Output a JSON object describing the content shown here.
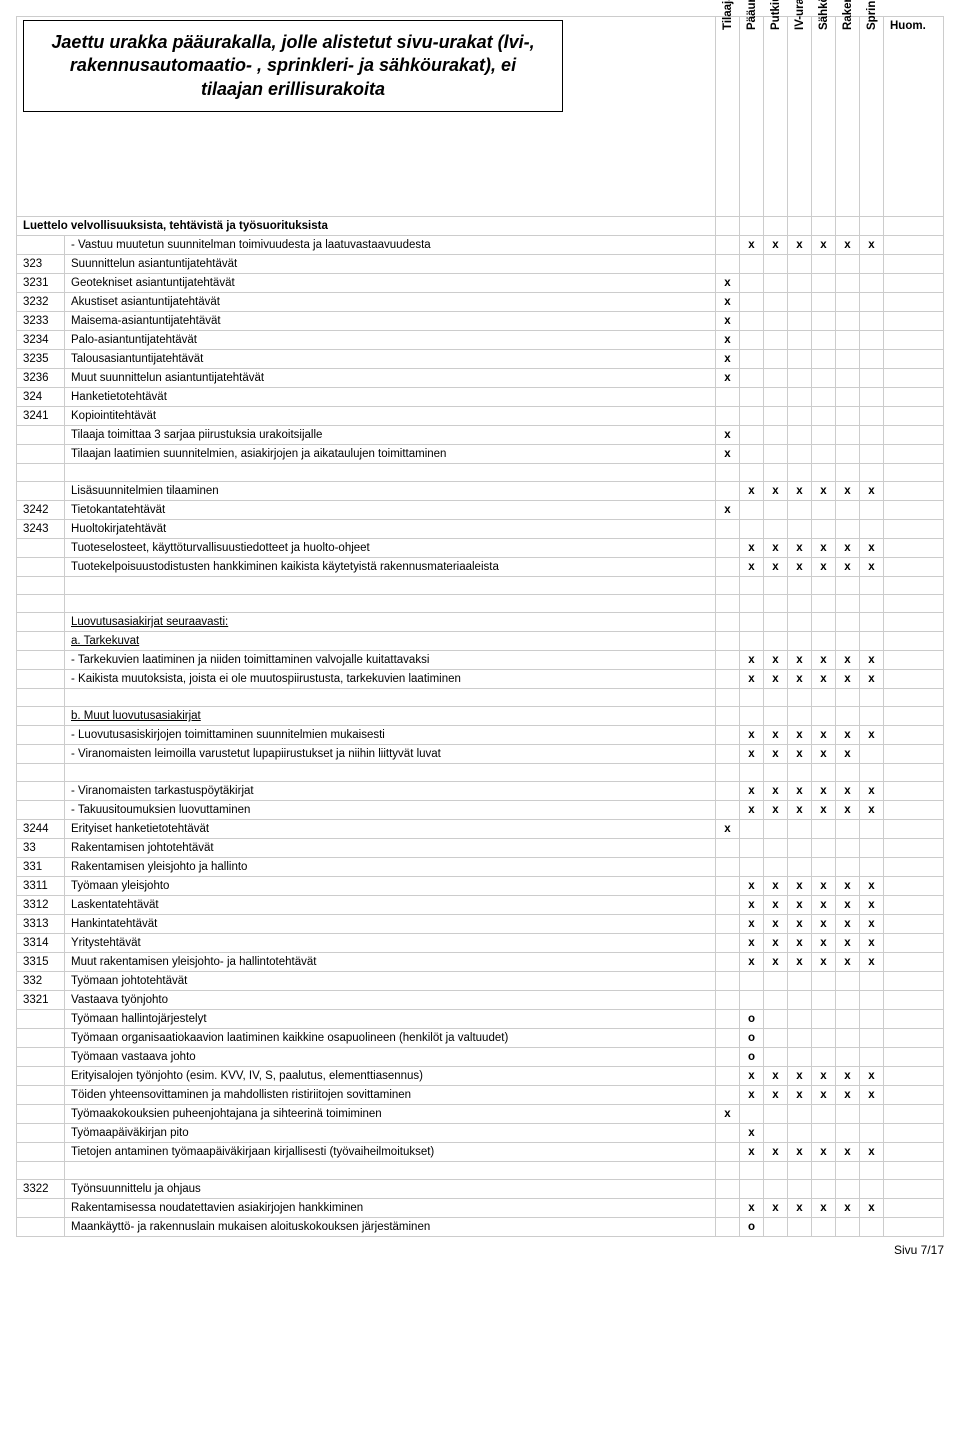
{
  "title": "Jaettu urakka pääurakalla, jolle alistetut sivu-urakat (lvi-, rakennusautomaatio- , sprinkleri- ja sähköurakat), ei tilaajan erillisurakoita",
  "list_header": "Luettelo velvollisuuksista, tehtävistä ja työsuorituksista",
  "columns": [
    "Tilaaja",
    "Pääurakoitsija",
    "Putkiurakoitsija",
    "IV-urakoitsija",
    "Sähköurakoitsija",
    "Rakennusautomaatiourakoitsija",
    "Sprinkleriurakoitsija"
  ],
  "note_header": "Huom.",
  "footer": "Sivu 7/17",
  "rows": [
    {
      "code": "",
      "desc": "- Vastuu muutetun suunnitelman toimivuudesta ja laatuvastaavuudesta",
      "indent": 2,
      "marks": [
        "",
        "x",
        "x",
        "x",
        "x",
        "x",
        "x"
      ]
    },
    {
      "code": "323",
      "desc": "Suunnittelun asiantuntijatehtävät",
      "indent": 1,
      "marks": [
        "",
        "",
        "",
        "",
        "",
        "",
        ""
      ]
    },
    {
      "code": "3231",
      "desc": "Geotekniset asiantuntijatehtävät",
      "indent": 1,
      "marks": [
        "x",
        "",
        "",
        "",
        "",
        "",
        ""
      ]
    },
    {
      "code": "3232",
      "desc": "Akustiset asiantuntijatehtävät",
      "indent": 1,
      "marks": [
        "x",
        "",
        "",
        "",
        "",
        "",
        ""
      ]
    },
    {
      "code": "3233",
      "desc": "Maisema-asiantuntijatehtävät",
      "indent": 1,
      "marks": [
        "x",
        "",
        "",
        "",
        "",
        "",
        ""
      ]
    },
    {
      "code": "3234",
      "desc": "Palo-asiantuntijatehtävät",
      "indent": 1,
      "marks": [
        "x",
        "",
        "",
        "",
        "",
        "",
        ""
      ]
    },
    {
      "code": "3235",
      "desc": "Talousasiantuntijatehtävät",
      "indent": 1,
      "marks": [
        "x",
        "",
        "",
        "",
        "",
        "",
        ""
      ]
    },
    {
      "code": "3236",
      "desc": "Muut suunnittelun asiantuntijatehtävät",
      "indent": 1,
      "marks": [
        "x",
        "",
        "",
        "",
        "",
        "",
        ""
      ]
    },
    {
      "code": "324",
      "desc": "Hanketietotehtävät",
      "indent": 1,
      "marks": [
        "",
        "",
        "",
        "",
        "",
        "",
        ""
      ]
    },
    {
      "code": "3241",
      "desc": "Kopiointitehtävät",
      "indent": 1,
      "marks": [
        "",
        "",
        "",
        "",
        "",
        "",
        ""
      ]
    },
    {
      "code": "",
      "desc": "Tilaaja toimittaa 3 sarjaa piirustuksia urakoitsijalle",
      "indent": 2,
      "marks": [
        "x",
        "",
        "",
        "",
        "",
        "",
        ""
      ]
    },
    {
      "code": "",
      "desc": "Tilaajan laatimien suunnitelmien, asiakirjojen ja aikataulujen toimittaminen",
      "indent": 2,
      "marks": [
        "x",
        "",
        "",
        "",
        "",
        "",
        ""
      ]
    },
    {
      "blank": true
    },
    {
      "code": "",
      "desc": "Lisäsuunnitelmien tilaaminen",
      "indent": 2,
      "marks": [
        "",
        "x",
        "x",
        "x",
        "x",
        "x",
        "x"
      ]
    },
    {
      "code": "3242",
      "desc": "Tietokantatehtävät",
      "indent": 1,
      "marks": [
        "x",
        "",
        "",
        "",
        "",
        "",
        ""
      ]
    },
    {
      "code": "3243",
      "desc": "Huoltokirjatehtävät",
      "indent": 1,
      "marks": [
        "",
        "",
        "",
        "",
        "",
        "",
        ""
      ]
    },
    {
      "code": "",
      "desc": "Tuoteselosteet, käyttöturvallisuustiedotteet ja huolto-ohjeet",
      "indent": 2,
      "marks": [
        "",
        "x",
        "x",
        "x",
        "x",
        "x",
        "x"
      ]
    },
    {
      "code": "",
      "desc": "Tuotekelpoisuustodistusten hankkiminen kaikista käytetyistä rakennusmateriaaleista",
      "indent": 2,
      "marks": [
        "",
        "x",
        "x",
        "x",
        "x",
        "x",
        "x"
      ]
    },
    {
      "blank": true
    },
    {
      "blank": true
    },
    {
      "code": "",
      "desc": "Luovutusasiakirjat seuraavasti:",
      "indent": 2,
      "underline": true,
      "marks": [
        "",
        "",
        "",
        "",
        "",
        "",
        ""
      ]
    },
    {
      "code": "",
      "desc": "a. Tarkekuvat",
      "indent": 2,
      "underline": true,
      "marks": [
        "",
        "",
        "",
        "",
        "",
        "",
        ""
      ]
    },
    {
      "code": "",
      "desc": "- Tarkekuvien laatiminen ja niiden toimittaminen valvojalle kuitattavaksi",
      "indent": 2,
      "marks": [
        "",
        "x",
        "x",
        "x",
        "x",
        "x",
        "x"
      ]
    },
    {
      "code": "",
      "desc": "- Kaikista muutoksista, joista ei ole muutospiirustusta, tarkekuvien laatiminen",
      "indent": 2,
      "marks": [
        "",
        "x",
        "x",
        "x",
        "x",
        "x",
        "x"
      ]
    },
    {
      "blank": true
    },
    {
      "code": "",
      "desc": "b. Muut luovutusasiakirjat",
      "indent": 2,
      "underline": true,
      "marks": [
        "",
        "",
        "",
        "",
        "",
        "",
        ""
      ]
    },
    {
      "code": "",
      "desc": "- Luovutusasiskirjojen toimittaminen suunnitelmien mukaisesti",
      "indent": 2,
      "marks": [
        "",
        "x",
        "x",
        "x",
        "x",
        "x",
        "x"
      ]
    },
    {
      "code": "",
      "desc": "- Viranomaisten leimoilla varustetut lupapiirustukset ja niihin liittyvät luvat",
      "indent": 2,
      "marks": [
        "",
        "x",
        "x",
        "x",
        "x",
        "x",
        ""
      ]
    },
    {
      "blank": true
    },
    {
      "code": "",
      "desc": "- Viranomaisten tarkastuspöytäkirjat",
      "indent": 2,
      "marks": [
        "",
        "x",
        "x",
        "x",
        "x",
        "x",
        "x"
      ]
    },
    {
      "code": "",
      "desc": "- Takuusitoumuksien luovuttaminen",
      "indent": 2,
      "marks": [
        "",
        "x",
        "x",
        "x",
        "x",
        "x",
        "x"
      ]
    },
    {
      "code": "3244",
      "desc": "Erityiset hanketietotehtävät",
      "indent": 1,
      "marks": [
        "x",
        "",
        "",
        "",
        "",
        "",
        ""
      ]
    },
    {
      "code": "33",
      "desc": "Rakentamisen johtotehtävät",
      "indent": 0,
      "marks": [
        "",
        "",
        "",
        "",
        "",
        "",
        ""
      ]
    },
    {
      "code": "331",
      "desc": "Rakentamisen yleisjohto ja hallinto",
      "indent": 1,
      "marks": [
        "",
        "",
        "",
        "",
        "",
        "",
        ""
      ]
    },
    {
      "code": "3311",
      "desc": "Työmaan yleisjohto",
      "indent": 1,
      "marks": [
        "",
        "x",
        "x",
        "x",
        "x",
        "x",
        "x"
      ]
    },
    {
      "code": "3312",
      "desc": "Laskentatehtävät",
      "indent": 1,
      "marks": [
        "",
        "x",
        "x",
        "x",
        "x",
        "x",
        "x"
      ]
    },
    {
      "code": "3313",
      "desc": "Hankintatehtävät",
      "indent": 1,
      "marks": [
        "",
        "x",
        "x",
        "x",
        "x",
        "x",
        "x"
      ]
    },
    {
      "code": "3314",
      "desc": "Yritystehtävät",
      "indent": 1,
      "marks": [
        "",
        "x",
        "x",
        "x",
        "x",
        "x",
        "x"
      ]
    },
    {
      "code": "3315",
      "desc": "Muut rakentamisen yleisjohto- ja hallintotehtävät",
      "indent": 1,
      "marks": [
        "",
        "x",
        "x",
        "x",
        "x",
        "x",
        "x"
      ]
    },
    {
      "code": "332",
      "desc": "Työmaan johtotehtävät",
      "indent": 1,
      "marks": [
        "",
        "",
        "",
        "",
        "",
        "",
        ""
      ]
    },
    {
      "code": "3321",
      "desc": "Vastaava työnjohto",
      "indent": 1,
      "marks": [
        "",
        "",
        "",
        "",
        "",
        "",
        ""
      ]
    },
    {
      "code": "",
      "desc": "Työmaan hallintojärjestelyt",
      "indent": 2,
      "marks": [
        "",
        "o",
        "",
        "",
        "",
        "",
        ""
      ]
    },
    {
      "code": "",
      "desc": "Työmaan organisaatiokaavion laatiminen kaikkine osapuolineen (henkilöt ja valtuudet)",
      "indent": 2,
      "marks": [
        "",
        "o",
        "",
        "",
        "",
        "",
        ""
      ]
    },
    {
      "code": "",
      "desc": "Työmaan vastaava johto",
      "indent": 2,
      "marks": [
        "",
        "o",
        "",
        "",
        "",
        "",
        ""
      ]
    },
    {
      "code": "",
      "desc": "Erityisalojen työnjohto (esim. KVV, IV, S, paalutus, elementtiasennus)",
      "indent": 2,
      "marks": [
        "",
        "x",
        "x",
        "x",
        "x",
        "x",
        "x"
      ]
    },
    {
      "code": "",
      "desc": "Töiden yhteensovittaminen ja mahdollisten ristiriitojen sovittaminen",
      "indent": 2,
      "marks": [
        "",
        "x",
        "x",
        "x",
        "x",
        "x",
        "x"
      ]
    },
    {
      "code": "",
      "desc": "Työmaakokouksien puheenjohtajana ja sihteerinä toimiminen",
      "indent": 2,
      "marks": [
        "x",
        "",
        "",
        "",
        "",
        "",
        ""
      ]
    },
    {
      "code": "",
      "desc": "Työmaapäiväkirjan pito",
      "indent": 2,
      "marks": [
        "",
        "x",
        "",
        "",
        "",
        "",
        ""
      ]
    },
    {
      "code": "",
      "desc": "Tietojen antaminen työmaapäiväkirjaan kirjallisesti (työvaiheilmoitukset)",
      "indent": 2,
      "marks": [
        "",
        "x",
        "x",
        "x",
        "x",
        "x",
        "x"
      ]
    },
    {
      "blank": true
    },
    {
      "code": "3322",
      "desc": "Työnsuunnittelu ja ohjaus",
      "indent": 1,
      "marks": [
        "",
        "",
        "",
        "",
        "",
        "",
        ""
      ]
    },
    {
      "code": "",
      "desc": "Rakentamisessa noudatettavien asiakirjojen hankkiminen",
      "indent": 2,
      "marks": [
        "",
        "x",
        "x",
        "x",
        "x",
        "x",
        "x"
      ]
    },
    {
      "code": "",
      "desc": "Maankäyttö- ja rakennuslain mukaisen aloituskokouksen järjestäminen",
      "indent": 2,
      "marks": [
        "",
        "o",
        "",
        "",
        "",
        "",
        ""
      ]
    }
  ]
}
